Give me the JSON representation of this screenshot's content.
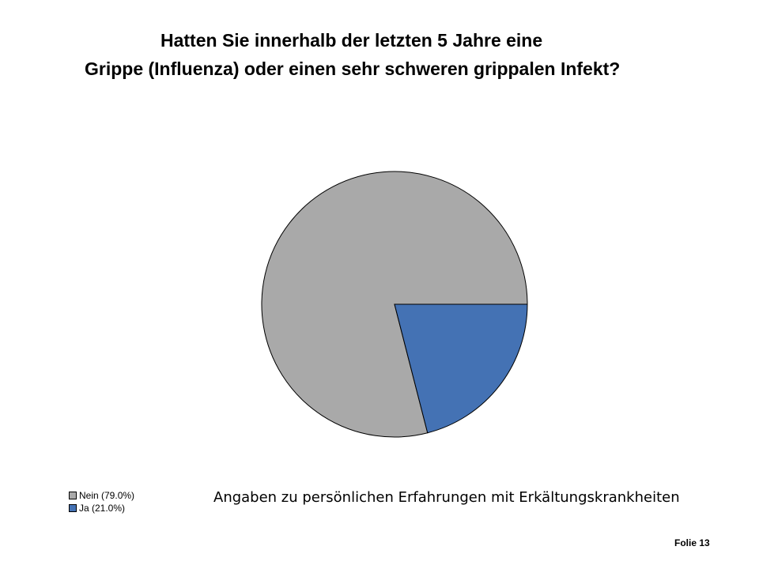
{
  "title_lines": [
    "Hatten Sie innerhalb der letzten 5 Jahre eine",
    "Grippe (Influenza) oder einen sehr schweren grippalen Infekt?"
  ],
  "caption": "Angaben zu persönlichen Erfahrungen mit Erkältungskrankheiten",
  "footer": "Folie 13",
  "colors": {
    "nein": "#a9a9a9",
    "ja": "#4472b4",
    "outline": "#000000"
  },
  "chart_data": {
    "type": "pie",
    "title": "Hatten Sie innerhalb der letzten 5 Jahre eine Grippe (Influenza) oder einen sehr schweren grippalen Infekt?",
    "categories": [
      "Nein",
      "Ja"
    ],
    "values": [
      79.0,
      21.0
    ],
    "unit": "%",
    "legend_labels": [
      "Nein (79.0%)",
      "Ja (21.0%)"
    ],
    "legend_position": "bottom-left",
    "start_angle_deg": 0,
    "direction": "clockwise"
  }
}
